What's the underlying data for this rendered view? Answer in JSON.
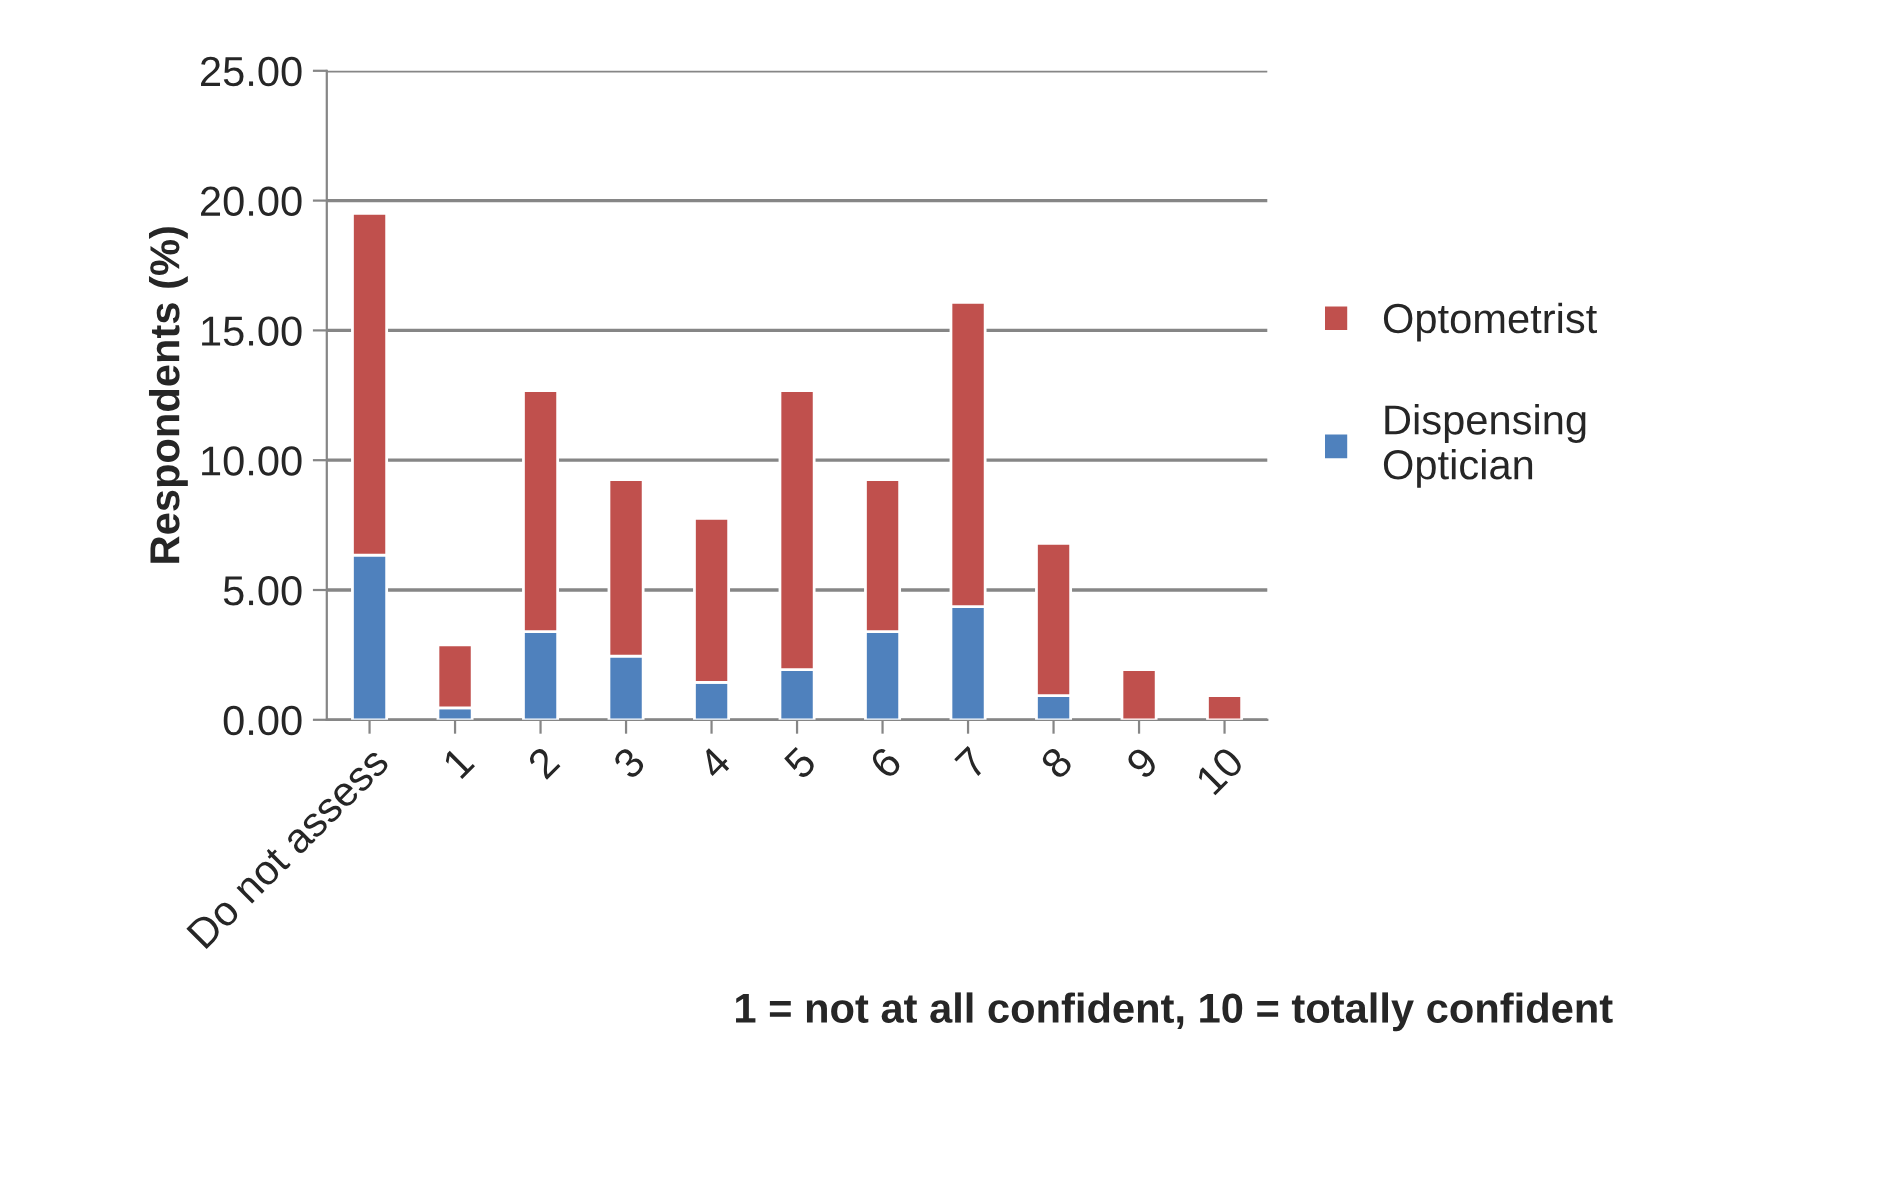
{
  "chart_data": {
    "type": "bar",
    "stacked": true,
    "xlabel": "1 = not at all confident, 10 = totally confident",
    "ylabel": "Respondents (%)",
    "categories": [
      "Do not assess",
      "1",
      "2",
      "3",
      "4",
      "5",
      "6",
      "7",
      "8",
      "9",
      "10"
    ],
    "series": [
      {
        "name": "Dispensing Optician",
        "color": "#4f81bd",
        "values": [
          6.34,
          0.46,
          3.4,
          2.45,
          1.44,
          1.93,
          3.4,
          4.36,
          0.93,
          0,
          0
        ]
      },
      {
        "name": "Optometrist",
        "color": "#c0504d",
        "values": [
          13.17,
          2.43,
          9.28,
          6.8,
          6.32,
          10.75,
          5.85,
          11.72,
          5.87,
          1.93,
          0.93
        ]
      }
    ],
    "ylim": [
      0,
      25
    ],
    "yticks": [
      {
        "value": 0,
        "label": "0.00"
      },
      {
        "value": 5,
        "label": "5.00"
      },
      {
        "value": 10,
        "label": "10.00"
      },
      {
        "value": 15,
        "label": "15.00"
      },
      {
        "value": 20,
        "label": "20.00"
      },
      {
        "value": 25,
        "label": "25.00"
      }
    ],
    "grid": "y",
    "legend": "right"
  }
}
